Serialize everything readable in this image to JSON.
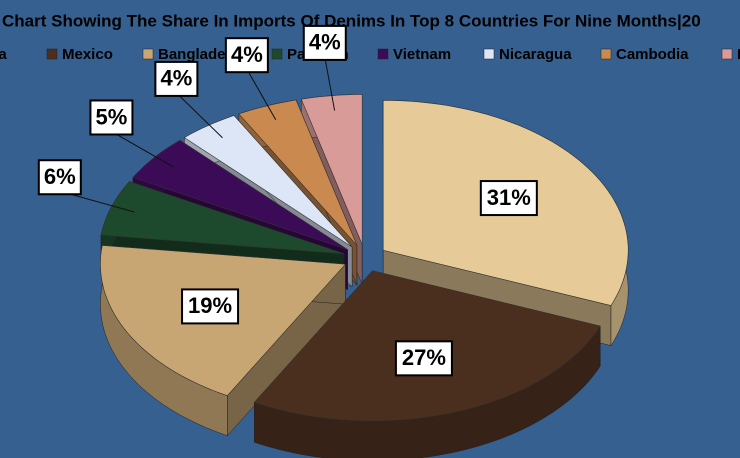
{
  "chart_data": {
    "type": "pie",
    "title": "Chart Showing The Share In Imports Of Denims In Top 8 Countries For Nine Months|20",
    "categories": [
      "ina",
      "Mexico",
      "Bangladesh",
      "Pakistan",
      "Vietnam",
      "Nicaragua",
      "Cambodia",
      "I"
    ],
    "values": [
      31,
      27,
      19,
      6,
      5,
      4,
      4,
      4
    ],
    "value_labels": [
      "31%",
      "27%",
      "19%",
      "6%",
      "5%",
      "4%",
      "4%",
      "4%"
    ],
    "colors": [
      "#e6cb98",
      "#4b2f1e",
      "#c8a674",
      "#1d4a2c",
      "#3c0b57",
      "#dde6f6",
      "#c9894f",
      "#d99b98"
    ]
  }
}
